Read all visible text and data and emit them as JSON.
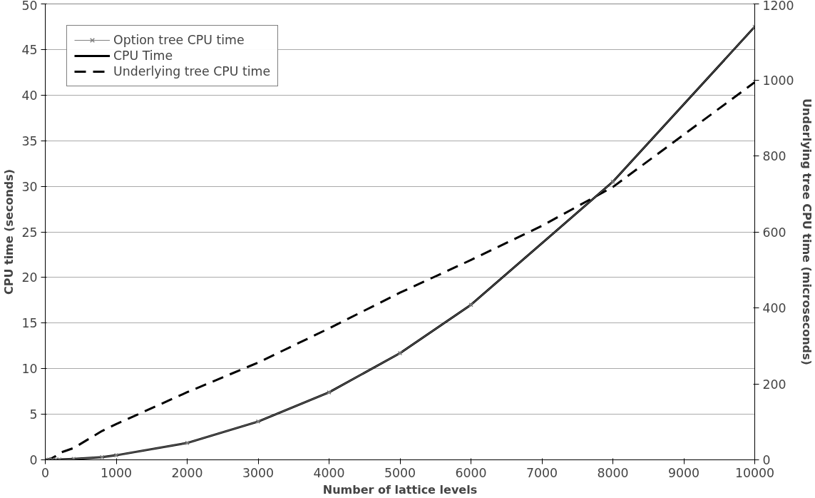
{
  "chart_data": {
    "type": "line",
    "xlabel": "Number of lattice levels",
    "ylabel": "CPU time (seconds)",
    "y2label": "Underlying tree CPU time (microseconds)",
    "x": [
      0,
      50,
      100,
      150,
      200,
      400,
      800,
      1000,
      2000,
      3000,
      4000,
      5000,
      6000,
      8000,
      10000
    ],
    "series": [
      {
        "name": "Option tree CPU time",
        "color": "#808080",
        "marker": "cross",
        "line_style": "solid",
        "values": [
          0,
          0.01,
          0.01,
          0.02,
          0.03,
          0.1,
          0.3,
          0.5,
          1.85,
          4.2,
          7.4,
          11.7,
          17.0,
          30.5,
          47.5
        ]
      },
      {
        "name": "CPU Time",
        "color": "#000000",
        "marker": "none",
        "line_style": "solid",
        "values": [
          0,
          0.01,
          0.01,
          0.02,
          0.03,
          0.1,
          0.3,
          0.5,
          1.85,
          4.2,
          7.4,
          11.7,
          17.0,
          30.5,
          47.5
        ]
      },
      {
        "name": "Underlying tree CPU time",
        "color": "#000000",
        "marker": "none",
        "line_style": "dashed",
        "axis": "y2",
        "x": [
          0,
          50,
          100,
          150,
          200,
          400,
          800,
          1000,
          2000,
          3000,
          4000,
          5000,
          6000,
          7000,
          8000,
          10000
        ],
        "values": [
          0,
          2,
          5,
          10,
          18,
          31,
          76,
          94,
          178,
          256,
          346,
          440,
          526,
          616,
          718,
          994
        ]
      }
    ],
    "xlim": [
      0,
      10000
    ],
    "xticks": [
      0,
      1000,
      2000,
      3000,
      4000,
      5000,
      6000,
      7000,
      8000,
      9000,
      10000
    ],
    "ylim": [
      0,
      50
    ],
    "yticks": [
      0,
      5,
      10,
      15,
      20,
      25,
      30,
      35,
      40,
      45,
      50
    ],
    "y2lim": [
      0,
      1200
    ],
    "y2ticks": [
      0,
      200,
      400,
      600,
      800,
      1000,
      1200
    ],
    "grid": "y",
    "legend": "top left"
  }
}
